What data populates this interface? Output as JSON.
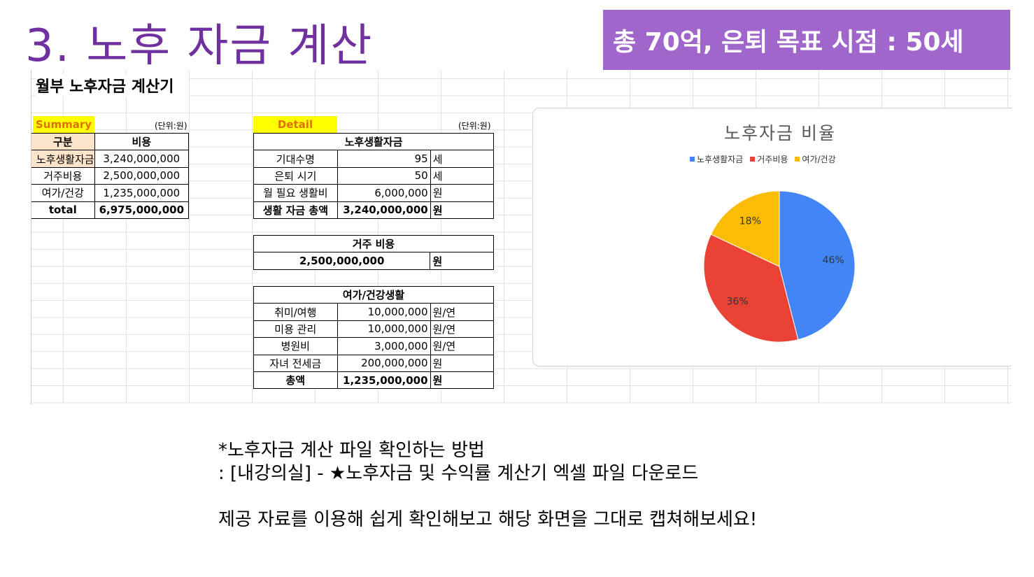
{
  "slide": {
    "title": "3. 노후 자금 계산",
    "goal_banner": "총 70억, 은퇴 목표 시점 : 50세"
  },
  "sheet": {
    "heading": "월부 노후자금 계산기",
    "summary": {
      "tag": "Summary",
      "unit": "(단위:원)",
      "header": [
        "구분",
        "비용"
      ],
      "rows": [
        [
          "노후생활자금",
          "3,240,000,000"
        ],
        [
          "거주비용",
          "2,500,000,000"
        ],
        [
          "여가/건강",
          "1,235,000,000"
        ],
        [
          "total",
          "6,975,000,000"
        ]
      ]
    },
    "detail": {
      "tag": "Detail",
      "unit": "(단위:원)",
      "living": {
        "title": "노후생활자금",
        "rows": [
          [
            "기대수명",
            "95",
            "세"
          ],
          [
            "은퇴 시기",
            "50",
            "세"
          ],
          [
            "월 필요 생활비",
            "6,000,000",
            "원"
          ],
          [
            "생활 자금 총액",
            "3,240,000,000",
            "원"
          ]
        ]
      },
      "housing": {
        "title": "거주 비용",
        "value": "2,500,000,000",
        "unit": "원"
      },
      "leisure": {
        "title": "여가/건강생활",
        "rows": [
          [
            "취미/여행",
            "10,000,000",
            "원/연"
          ],
          [
            "미용 관리",
            "10,000,000",
            "원/연"
          ],
          [
            "병원비",
            "3,000,000",
            "원/연"
          ],
          [
            "자녀 전세금",
            "200,000,000",
            "원"
          ],
          [
            "총액",
            "1,235,000,000",
            "원"
          ]
        ]
      }
    }
  },
  "chart_data": {
    "type": "pie",
    "title": "노후자금 비율",
    "legend_position": "top",
    "categories": [
      "노후생활자금",
      "거주비용",
      "여가/건강"
    ],
    "values": [
      46,
      36,
      18
    ],
    "labels": [
      "46%",
      "36%",
      "18%"
    ],
    "colors": [
      "#4285f4",
      "#ea4335",
      "#fbbc04"
    ]
  },
  "notes": {
    "line1": "*노후자금 계산 파일 확인하는 방법",
    "line2": ": [내강의실] - ★노후자금 및 수익률 계산기 엑셀 파일 다운로드",
    "line3": "제공 자료를 이용해 쉽게 확인해보고 해당 화면을 그대로 캡쳐해보세요!"
  }
}
